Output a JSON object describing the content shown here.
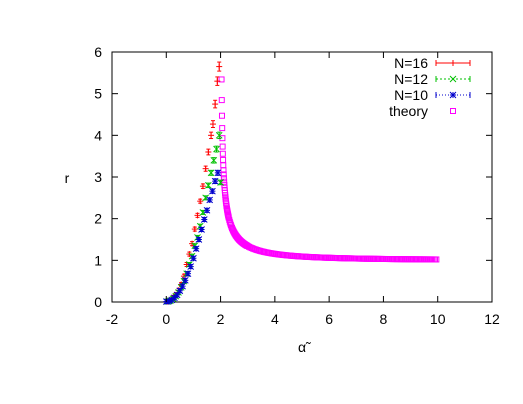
{
  "chart_data": {
    "type": "scatter",
    "xlabel": "α̃",
    "ylabel": "r",
    "xlim": [
      -2,
      12
    ],
    "ylim": [
      0,
      6
    ],
    "xticks": [
      "-2",
      "0",
      "2",
      "4",
      "6",
      "8",
      "10",
      "12"
    ],
    "yticks": [
      "0",
      "1",
      "2",
      "3",
      "4",
      "5",
      "6"
    ],
    "grid": false,
    "legend": "top-right",
    "series": [
      {
        "name": "N=16",
        "marker": "plus",
        "color": "#ff0000",
        "points": [
          [
            0.05,
            0.01
          ],
          [
            0.15,
            0.04
          ],
          [
            0.25,
            0.1
          ],
          [
            0.35,
            0.17
          ],
          [
            0.45,
            0.28
          ],
          [
            0.55,
            0.42
          ],
          [
            0.65,
            0.62
          ],
          [
            0.75,
            0.9
          ],
          [
            0.85,
            1.15
          ],
          [
            0.95,
            1.4
          ],
          [
            1.05,
            1.75
          ],
          [
            1.15,
            2.08
          ],
          [
            1.25,
            2.42
          ],
          [
            1.35,
            2.78
          ],
          [
            1.45,
            3.2
          ],
          [
            1.55,
            3.6
          ],
          [
            1.65,
            4.0
          ],
          [
            1.72,
            4.27
          ],
          [
            1.8,
            4.75
          ],
          [
            1.88,
            5.3
          ],
          [
            1.95,
            5.65
          ]
        ]
      },
      {
        "name": "N=12",
        "marker": "cross",
        "color": "#00c000",
        "points": [
          [
            0.05,
            0.01
          ],
          [
            0.15,
            0.03
          ],
          [
            0.25,
            0.08
          ],
          [
            0.35,
            0.14
          ],
          [
            0.45,
            0.23
          ],
          [
            0.55,
            0.35
          ],
          [
            0.65,
            0.5
          ],
          [
            0.75,
            0.68
          ],
          [
            0.85,
            0.9
          ],
          [
            0.95,
            1.1
          ],
          [
            1.05,
            1.35
          ],
          [
            1.15,
            1.55
          ],
          [
            1.25,
            1.82
          ],
          [
            1.35,
            2.15
          ],
          [
            1.45,
            2.5
          ],
          [
            1.55,
            2.8
          ],
          [
            1.65,
            3.1
          ],
          [
            1.75,
            3.4
          ],
          [
            1.85,
            3.67
          ],
          [
            1.95,
            4.0
          ],
          [
            2.0,
            2.87
          ]
        ]
      },
      {
        "name": "N=10",
        "marker": "star",
        "color": "#0000cc",
        "points": [
          [
            0.0,
            0.01
          ],
          [
            0.1,
            0.02
          ],
          [
            0.2,
            0.05
          ],
          [
            0.3,
            0.1
          ],
          [
            0.4,
            0.17
          ],
          [
            0.5,
            0.27
          ],
          [
            0.6,
            0.38
          ],
          [
            0.7,
            0.52
          ],
          [
            0.8,
            0.68
          ],
          [
            0.9,
            0.85
          ],
          [
            1.0,
            1.05
          ],
          [
            1.1,
            1.28
          ],
          [
            1.2,
            1.5
          ],
          [
            1.3,
            1.74
          ],
          [
            1.4,
            1.98
          ],
          [
            1.5,
            2.2
          ],
          [
            1.6,
            2.45
          ],
          [
            1.7,
            2.66
          ],
          [
            1.8,
            2.9
          ],
          [
            1.9,
            3.1
          ]
        ]
      },
      {
        "name": "theory",
        "marker": "square",
        "color": "#ff00ff",
        "function": "sqrt(a^2/(a^2-4)) for 2 < a <= 10",
        "x_range": [
          2.02,
          10
        ]
      }
    ]
  }
}
